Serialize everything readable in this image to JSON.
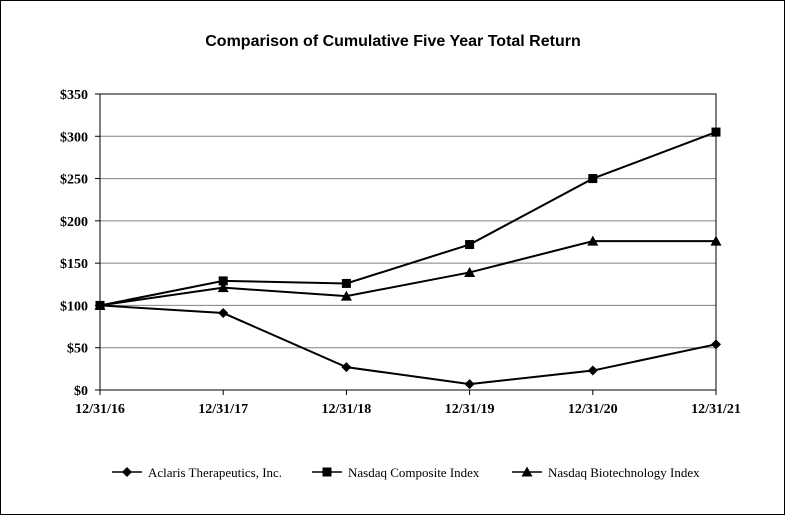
{
  "chart_data": {
    "type": "line",
    "title": "Comparison of Cumulative Five Year Total Return",
    "xlabel": "",
    "ylabel": "",
    "categories": [
      "12/31/16",
      "12/31/17",
      "12/31/18",
      "12/31/19",
      "12/31/20",
      "12/31/21"
    ],
    "ylim": [
      0,
      350
    ],
    "yticks": [
      0,
      50,
      100,
      150,
      200,
      250,
      300,
      350
    ],
    "ytick_labels": [
      "$0",
      "$50",
      "$100",
      "$150",
      "$200",
      "$250",
      "$300",
      "$350"
    ],
    "grid": true,
    "legend_position": "bottom",
    "series": [
      {
        "name": "Aclaris Therapeutics, Inc.",
        "marker": "diamond",
        "values": [
          100,
          91,
          27,
          7,
          23,
          54
        ]
      },
      {
        "name": "Nasdaq Composite Index",
        "marker": "square",
        "values": [
          100,
          129,
          126,
          172,
          250,
          305
        ]
      },
      {
        "name": "Nasdaq Biotechnology Index",
        "marker": "triangle",
        "values": [
          100,
          121,
          111,
          139,
          176,
          176
        ]
      }
    ],
    "line_color": "#000000",
    "grid_color": "#808080"
  }
}
